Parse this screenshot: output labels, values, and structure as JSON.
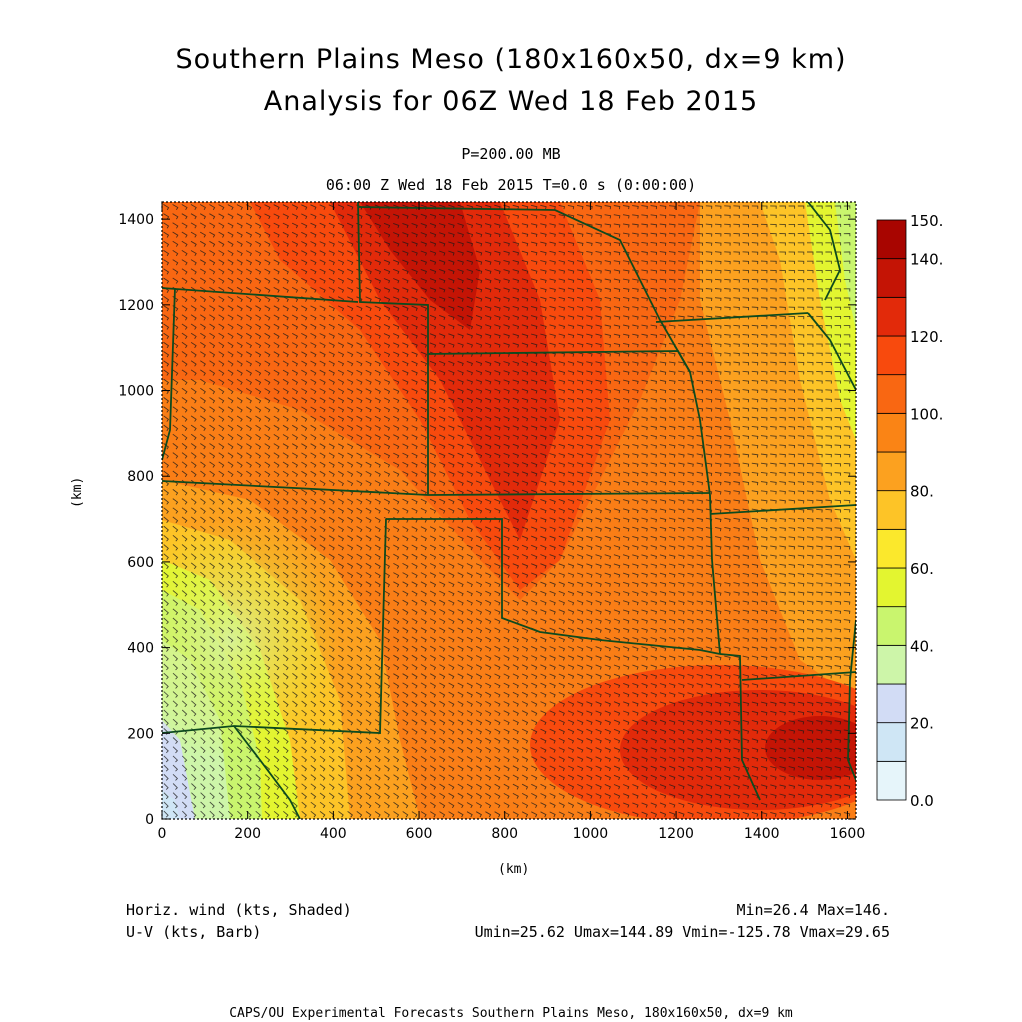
{
  "title": "Southern Plains Meso (180x160x50, dx=9 km)",
  "subtitle": "Analysis for 06Z Wed 18 Feb 2015",
  "level": "P=200.00 MB",
  "valid_time": "06:00 Z Wed 18 Feb 2015   T=0.0 s (0:00:00)",
  "x_axis_label": "(km)",
  "y_axis_label": "(km)",
  "field_shaded": "Horiz. wind (kts, Shaded)",
  "field_barb": "U-V (kts, Barb)",
  "stats_minmax": "Min=26.4 Max=146.",
  "stats_uv": "Umin=25.62 Umax=144.89 Vmin=-125.78 Vmax=29.65",
  "footer": "CAPS/OU Experimental Forecasts  Southern Plains Meso, 180x160x50, dx=9 km",
  "colorbar": {
    "labels": [
      "0.0",
      "20.",
      "40.",
      "60.",
      "80.",
      "100.",
      "120.",
      "140.",
      "150."
    ],
    "label_values": [
      0,
      20,
      40,
      60,
      80,
      100,
      120,
      140,
      150
    ],
    "levels": [
      0,
      10,
      20,
      30,
      40,
      50,
      60,
      70,
      80,
      90,
      100,
      110,
      120,
      130,
      140,
      150
    ],
    "colors": [
      "#e6f5fa",
      "#cfe6f5",
      "#d2dcf5",
      "#cdf5a9",
      "#c9f56e",
      "#e3f530",
      "#fbe82c",
      "#fdc427",
      "#fca11f",
      "#fa8415",
      "#f96712",
      "#f84a0d",
      "#e22a0a",
      "#c41405",
      "#a80500"
    ]
  },
  "chart_data": {
    "type": "heatmap",
    "variable": "Horiz. wind speed (kts)",
    "x_ticks": [
      0,
      200,
      400,
      600,
      800,
      1000,
      1200,
      1400,
      1600
    ],
    "y_ticks": [
      0,
      200,
      400,
      600,
      800,
      1000,
      1200,
      1400
    ],
    "xlim": [
      0,
      1620
    ],
    "ylim": [
      0,
      1440
    ],
    "min": 26.4,
    "max": 146,
    "jet_core_axis": [
      [
        470,
        1420
      ],
      [
        720,
        950
      ],
      [
        840,
        600
      ]
    ],
    "secondary_max_center": [
      1550,
      160
    ],
    "lowest_speed_region": [
      20,
      40
    ]
  },
  "colors": {
    "border": "#0d4a1e",
    "barb": "#1a1a1a",
    "frame": "#000000"
  }
}
